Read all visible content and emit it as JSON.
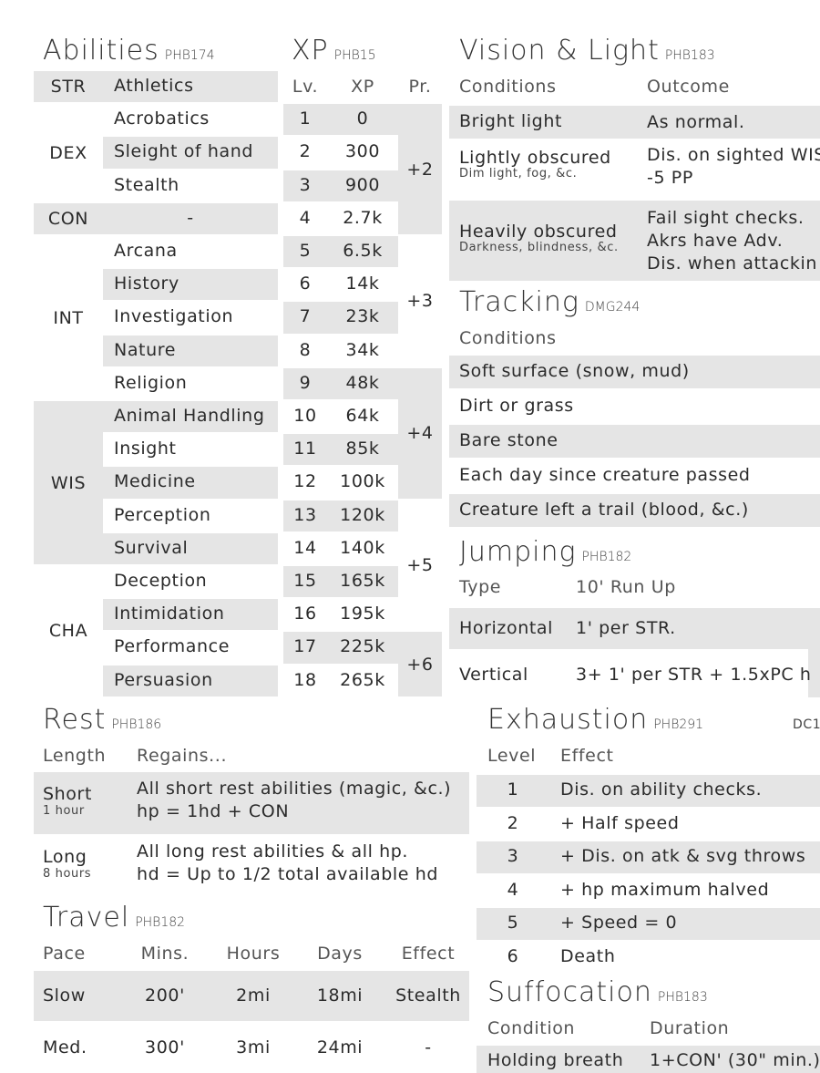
{
  "abilities": {
    "title": "Abilities",
    "ref": "PHB174",
    "groups": [
      {
        "ability": "STR",
        "rows": 1
      },
      {
        "ability": "DEX",
        "rows": 3
      },
      {
        "ability": "CON",
        "rows": 1
      },
      {
        "ability": "INT",
        "rows": 5
      },
      {
        "ability": "WIS",
        "rows": 5
      },
      {
        "ability": "CHA",
        "rows": 4
      }
    ],
    "skills": [
      "Athletics",
      "Acrobatics",
      "Sleight of hand",
      "Stealth",
      "-",
      "Arcana",
      "History",
      "Investigation",
      "Nature",
      "Religion",
      "Animal Handling",
      "Insight",
      "Medicine",
      "Perception",
      "Survival",
      "Deception",
      "Intimidation",
      "Performance",
      "Persuasion"
    ]
  },
  "xp": {
    "title": "XP",
    "ref": "PHB15",
    "headers": [
      "Lv.",
      "XP",
      "Pr."
    ],
    "levels": [
      "1",
      "2",
      "3",
      "4",
      "5",
      "6",
      "7",
      "8",
      "9",
      "10",
      "11",
      "12",
      "13",
      "14",
      "15",
      "16",
      "17",
      "18"
    ],
    "values": [
      "0",
      "300",
      "900",
      "2.7k",
      "6.5k",
      "14k",
      "23k",
      "34k",
      "48k",
      "64k",
      "85k",
      "100k",
      "120k",
      "140k",
      "165k",
      "195k",
      "225k",
      "265k"
    ],
    "proficiency": [
      {
        "bonus": "+2",
        "from": 1,
        "to": 4
      },
      {
        "bonus": "+3",
        "from": 5,
        "to": 8
      },
      {
        "bonus": "+4",
        "from": 9,
        "to": 12
      },
      {
        "bonus": "+5",
        "from": 13,
        "to": 16
      },
      {
        "bonus": "+6",
        "from": 17,
        "to": 18
      }
    ]
  },
  "vision": {
    "title": "Vision & Light",
    "ref": "PHB183",
    "headers": [
      "Conditions",
      "Outcome"
    ],
    "rows": [
      {
        "condition": "Bright light",
        "note": "",
        "outcome": [
          "As normal."
        ]
      },
      {
        "condition": "Lightly obscured",
        "note": "Dim light, fog, &c.",
        "outcome": [
          "Dis. on sighted WIS",
          "-5 PP"
        ]
      },
      {
        "condition": "Heavily obscured",
        "note": "Darkness, blindness, &c.",
        "outcome": [
          "Fail sight checks.",
          "Akrs have Adv.",
          "Dis. when attackin"
        ]
      }
    ]
  },
  "tracking": {
    "title": "Tracking",
    "ref": "DMG244",
    "header": "Conditions",
    "rows": [
      "Soft surface (snow, mud)",
      "Dirt or grass",
      "Bare stone",
      "Each day since creature passed",
      "Creature left a trail (blood, &c.)"
    ]
  },
  "jumping": {
    "title": "Jumping",
    "ref": "PHB182",
    "headers": [
      "Type",
      "10' Run Up"
    ],
    "rows": [
      {
        "type": "Horizontal",
        "value": "1' per STR."
      },
      {
        "type": "Vertical",
        "value": "3+ 1' per STR + 1.5xPC h"
      }
    ]
  },
  "rest": {
    "title": "Rest",
    "ref": "PHB186",
    "headers": [
      "Length",
      "Regains..."
    ],
    "rows": [
      {
        "length": "Short",
        "duration": "1 hour",
        "regains": [
          "All short rest abilities (magic, &c.)",
          "hp = 1hd + CON"
        ]
      },
      {
        "length": "Long",
        "duration": "8 hours",
        "regains": [
          "All long rest abilities & all hp.",
          "hd = Up to 1/2 total available hd"
        ]
      }
    ]
  },
  "travel": {
    "title": "Travel",
    "ref": "PHB182",
    "headers": [
      "Pace",
      "Mins.",
      "Hours",
      "Days",
      "Effect"
    ],
    "rows": [
      [
        "Slow",
        "200'",
        "2mi",
        "18mi",
        "Stealth"
      ],
      [
        "Med.",
        "300'",
        "3mi",
        "24mi",
        "-"
      ]
    ]
  },
  "exhaustion": {
    "title": "Exhaustion",
    "ref": "PHB291",
    "dc": "DC1",
    "headers": [
      "Level",
      "Effect"
    ],
    "rows": [
      [
        "1",
        "Dis. on ability checks."
      ],
      [
        "2",
        "+ Half speed"
      ],
      [
        "3",
        "+ Dis. on atk & svg throws"
      ],
      [
        "4",
        "+ hp maximum halved"
      ],
      [
        "5",
        "+ Speed = 0"
      ],
      [
        "6",
        "Death"
      ]
    ]
  },
  "suffocation": {
    "title": "Suffocation",
    "ref": "PHB183",
    "headers": [
      "Condition",
      "Duration"
    ],
    "rows": [
      [
        "Holding breath",
        "1+CON' (30\" min.)"
      ]
    ]
  },
  "colors": {
    "shade": "#e5e5e5",
    "text": "#2b2b2b"
  }
}
